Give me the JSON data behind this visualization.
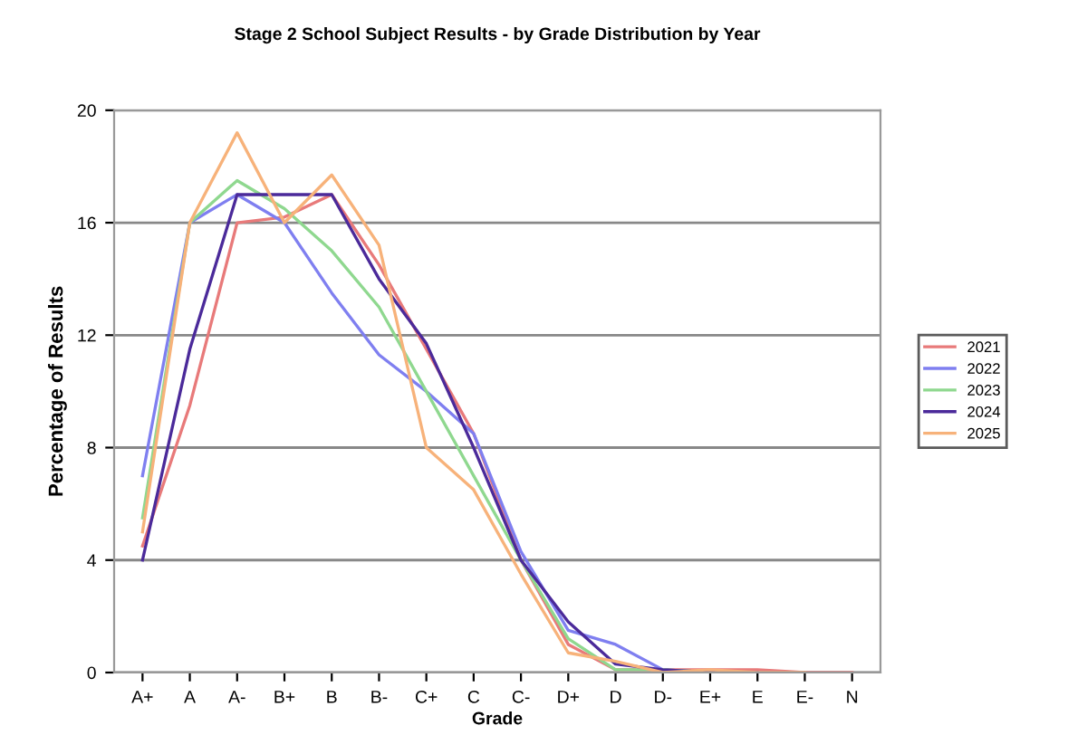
{
  "chart_data": {
    "type": "line",
    "title": "Stage 2 School Subject Results - by Grade Distribution by Year",
    "xlabel": "Grade",
    "ylabel": "Percentage of Results",
    "categories": [
      "A+",
      "A",
      "A-",
      "B+",
      "B",
      "B-",
      "C+",
      "C",
      "C-",
      "D+",
      "D",
      "D-",
      "E+",
      "E",
      "E-",
      "N"
    ],
    "series": [
      {
        "name": "2021",
        "color": "#e87a7a",
        "values": [
          4.5,
          9.5,
          16,
          16.2,
          17,
          14.5,
          11.5,
          8.5,
          4,
          1,
          0.1,
          0.1,
          0.1,
          0.1,
          0,
          0
        ]
      },
      {
        "name": "2022",
        "color": "#7f7ff0",
        "values": [
          7,
          16,
          17,
          16,
          13.5,
          11.3,
          10,
          8.5,
          4.3,
          1.5,
          1,
          0.1,
          0,
          null,
          null,
          null
        ]
      },
      {
        "name": "2023",
        "color": "#8fd88f",
        "values": [
          5.5,
          16,
          17.5,
          16.5,
          15,
          13,
          10,
          7,
          4,
          1.2,
          0.1,
          0.1,
          0,
          null,
          null,
          null
        ]
      },
      {
        "name": "2024",
        "color": "#4b2a9a",
        "values": [
          4,
          11.5,
          17,
          17,
          17,
          14,
          11.7,
          8,
          4,
          1.8,
          0.3,
          0.1,
          0,
          0,
          null,
          null
        ]
      },
      {
        "name": "2025",
        "color": "#f7b27a",
        "values": [
          5,
          16,
          19.2,
          16,
          17.7,
          15.2,
          8,
          6.5,
          3.5,
          0.7,
          0.4,
          0,
          0.1,
          0,
          0,
          null
        ]
      }
    ],
    "ylim": [
      0,
      20
    ],
    "yticks": [
      0,
      4,
      8,
      12,
      16,
      20
    ],
    "grid": "y",
    "legend": "right",
    "marker": "none",
    "line_style": "solid"
  }
}
